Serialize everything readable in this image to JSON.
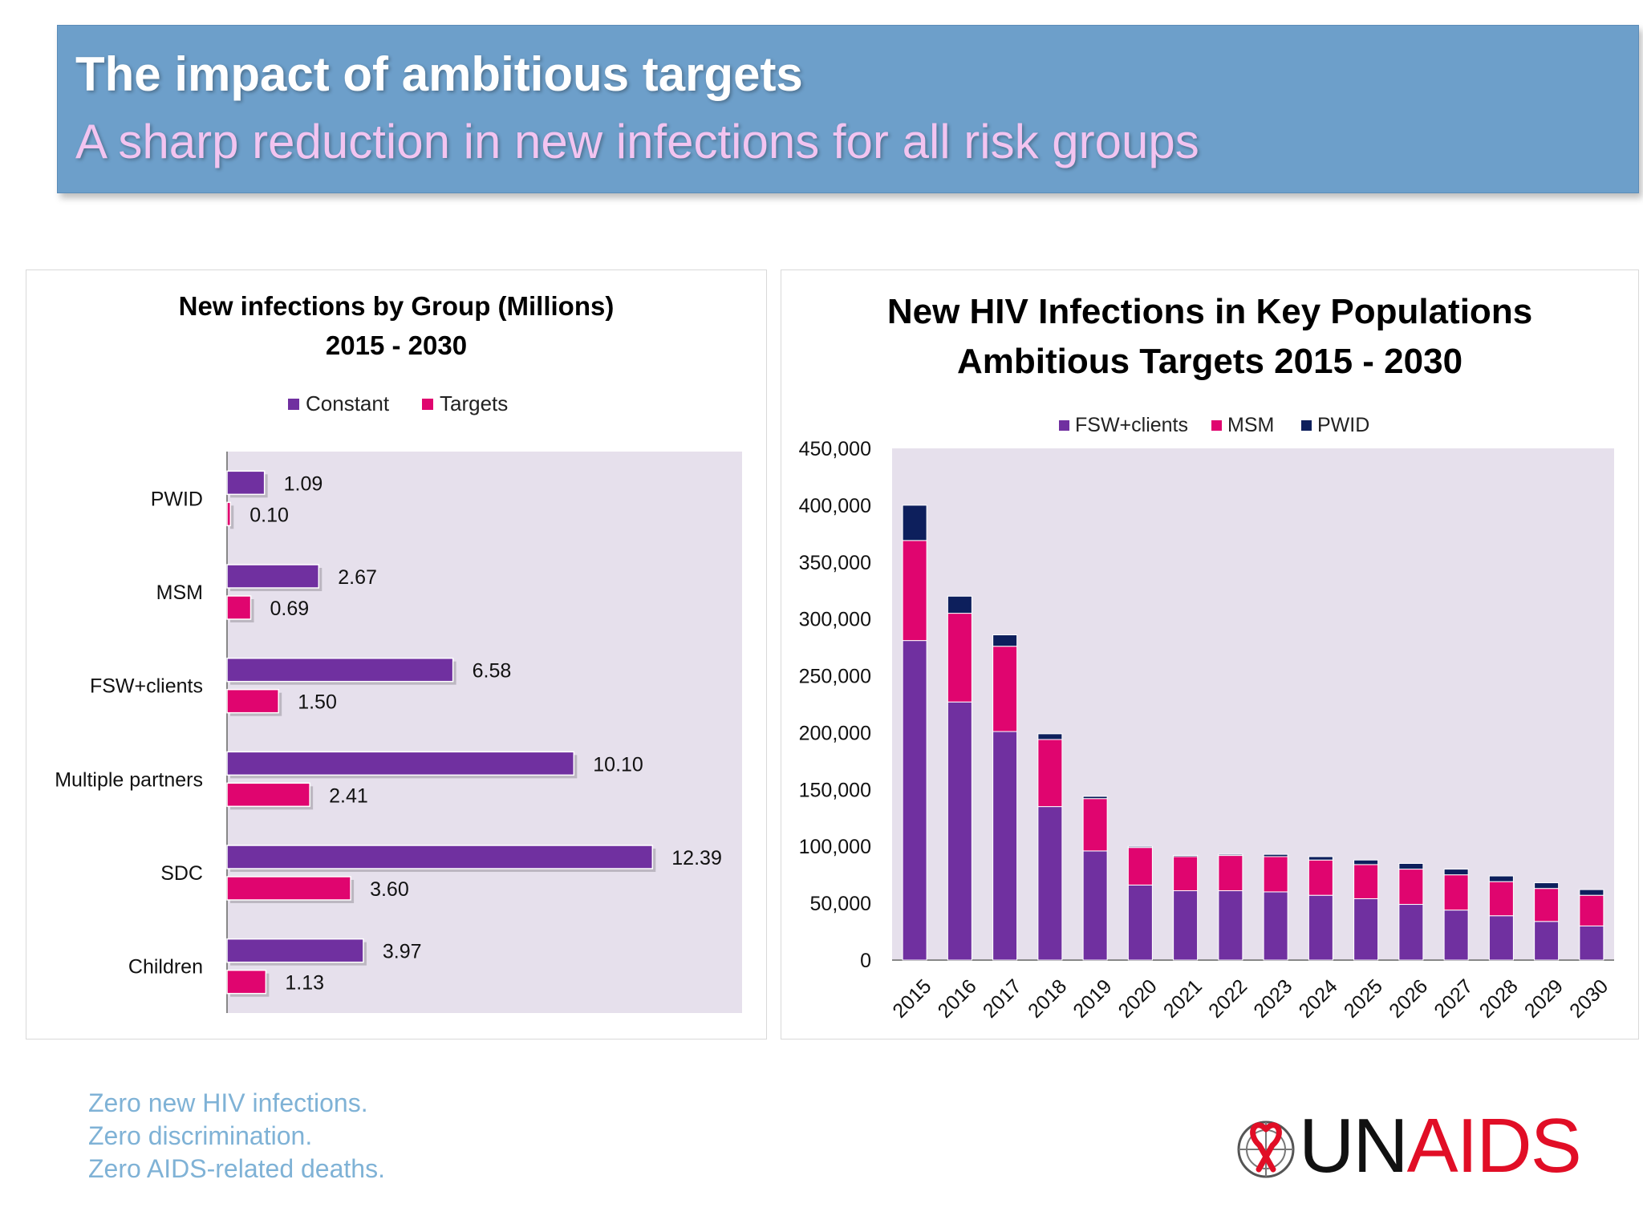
{
  "banner": {
    "title": "The impact of ambitious targets",
    "subtitle": "A sharp reduction in new infections for all risk groups"
  },
  "colors": {
    "banner_bg": "#6d9fca",
    "plot_bg": "#e6e0ec",
    "constant": "#7030a0",
    "targets": "#e0056f",
    "fsw": "#7030a0",
    "msm": "#e0056f",
    "pwid": "#0d1f5c"
  },
  "chart_data": [
    {
      "type": "bar",
      "orientation": "horizontal",
      "title": "New infections by Group (Millions)",
      "subtitle": "2015 - 2030",
      "categories": [
        "PWID",
        "MSM",
        "FSW+clients",
        "Multiple partners",
        "SDC",
        "Children"
      ],
      "series": [
        {
          "name": "Constant",
          "values": [
            1.09,
            2.67,
            6.58,
            10.1,
            12.39,
            3.97
          ],
          "labels": [
            "1.09",
            "2.67",
            "6.58",
            "10.10",
            "12.39",
            "3.97"
          ]
        },
        {
          "name": "Targets",
          "values": [
            0.1,
            0.69,
            1.5,
            2.41,
            3.6,
            1.13
          ],
          "labels": [
            "0.10",
            "0.69",
            "1.50",
            "2.41",
            "3.60",
            "1.13"
          ]
        }
      ],
      "xlim": [
        0,
        15
      ],
      "legend": "top"
    },
    {
      "type": "bar",
      "stacked": true,
      "title": "New HIV Infections in Key Populations",
      "subtitle": "Ambitious Targets 2015 - 2030",
      "categories": [
        "2015",
        "2016",
        "2017",
        "2018",
        "2019",
        "2020",
        "2021",
        "2022",
        "2023",
        "2024",
        "2025",
        "2026",
        "2027",
        "2028",
        "2029",
        "2030"
      ],
      "series": [
        {
          "name": "FSW+clients",
          "values": [
            281000,
            227000,
            201000,
            135000,
            96000,
            66000,
            61000,
            61000,
            60000,
            57000,
            54000,
            49000,
            44000,
            39000,
            34000,
            30000
          ]
        },
        {
          "name": "MSM",
          "values": [
            88000,
            78000,
            75000,
            59000,
            46000,
            33000,
            30000,
            31000,
            31000,
            31000,
            30000,
            31000,
            31000,
            30000,
            29000,
            27000
          ]
        },
        {
          "name": "PWID",
          "values": [
            31000,
            15000,
            10000,
            5000,
            2000,
            1000,
            1000,
            1000,
            2000,
            3000,
            4000,
            5000,
            5000,
            5000,
            5000,
            5000
          ]
        }
      ],
      "ylim": [
        0,
        450000
      ],
      "yticks": [
        "0",
        "50,000",
        "100,000",
        "150,000",
        "200,000",
        "250,000",
        "300,000",
        "350,000",
        "400,000",
        "450,000"
      ],
      "legend": "top"
    }
  ],
  "footer": {
    "tagline": [
      "Zero new HIV infections.",
      "Zero discrimination.",
      "Zero AIDS-related deaths."
    ],
    "logo_text_un": "UN",
    "logo_text_aids": "AIDS"
  }
}
